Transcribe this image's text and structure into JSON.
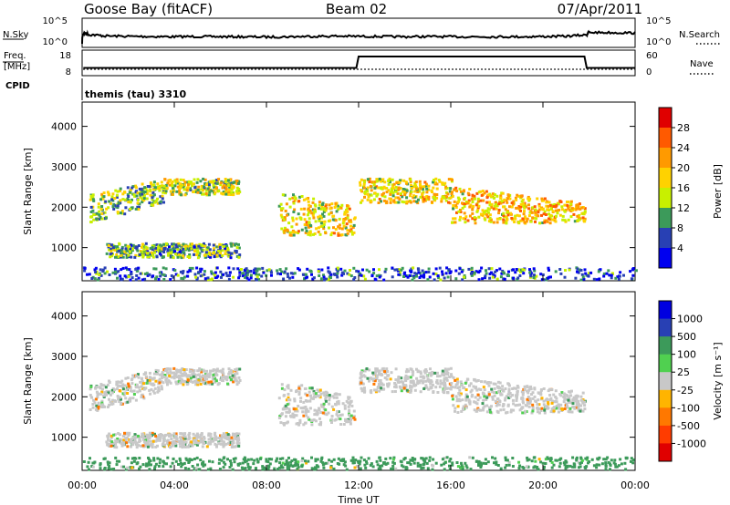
{
  "header": {
    "station": "Goose Bay (fitACF)",
    "beam": "Beam 02",
    "date": "07/Apr/2011"
  },
  "noise_panel": {
    "left_label": "N.Sky",
    "left_ticks": [
      "10^5",
      "10^0"
    ],
    "right_ticks": [
      "10^5",
      "10^0"
    ],
    "right_label": "N.Search"
  },
  "freq_panel": {
    "left_label_line1": "Freq.",
    "left_label_line2": "[MHz]",
    "left_ticks": [
      "18",
      "8"
    ],
    "right_ticks": [
      "60",
      "0"
    ],
    "right_label": "Nave",
    "cpid_label": "CPID",
    "program": "themis (tau) 3310"
  },
  "x_axis": {
    "label": "Time UT",
    "ticks": [
      "00:00",
      "04:00",
      "08:00",
      "12:00",
      "16:00",
      "20:00",
      "00:00"
    ]
  },
  "power_colorbar": {
    "label": "Power [dB]",
    "ticks": [
      "28",
      "24",
      "20",
      "16",
      "12",
      "8",
      "4"
    ],
    "colors": [
      "#e00000",
      "#ff5a00",
      "#ff9a00",
      "#ffd200",
      "#c8f000",
      "#3c9a5a",
      "#2840b4",
      "#0000f0"
    ]
  },
  "velocity_colorbar": {
    "label": "Velocity [m s⁻¹]",
    "ticks": [
      "1000",
      "500",
      "100",
      "25",
      "-25",
      "-100",
      "-500",
      "-1000"
    ],
    "colors": [
      "#0000e0",
      "#2840b4",
      "#3c9a5a",
      "#50d050",
      "#c8c8c8",
      "#ffb400",
      "#ff7800",
      "#ff3c00",
      "#e00000"
    ]
  },
  "chart_data": [
    {
      "type": "line",
      "title": "Goose Bay (fitACF)  Beam 02  07/Apr/2011",
      "xlabel": "Time UT",
      "xlim": [
        0,
        24
      ],
      "series": [
        {
          "name": "N.Sky",
          "scale": "log",
          "x": [
            0,
            0.1,
            0.3,
            1,
            2,
            3,
            4,
            5,
            6,
            7,
            8,
            9,
            10,
            11,
            12,
            13,
            14,
            15,
            16,
            17,
            18,
            19,
            20,
            21,
            21.9,
            22,
            23,
            24
          ],
          "values": [
            1,
            300,
            120,
            60,
            50,
            45,
            40,
            45,
            40,
            40,
            35,
            40,
            50,
            55,
            50,
            45,
            40,
            45,
            40,
            40,
            40,
            40,
            45,
            50,
            100,
            400,
            350,
            300
          ]
        },
        {
          "name": "Freq. [MHz]",
          "x": [
            0.05,
            11.9,
            12.0,
            21.8,
            21.9,
            24
          ],
          "values": [
            11,
            11,
            16,
            16,
            11,
            11
          ]
        }
      ]
    },
    {
      "type": "heatmap",
      "ylabel": "Slant Range [km]",
      "xlabel": "Time UT",
      "yticks": [
        1000,
        2000,
        3000,
        4000
      ],
      "ylim": [
        180,
        4600
      ],
      "colorbar": "Power [dB]",
      "clim": [
        0,
        30
      ],
      "bands": [
        {
          "t_start": 0.3,
          "t_end": 3.5,
          "r_low": 1600,
          "r_high": 2300,
          "trend": "rising",
          "power_dB": 12
        },
        {
          "t_start": 3.5,
          "t_end": 6.8,
          "r_low": 2300,
          "r_high": 2700,
          "trend": "flat",
          "power_dB": 14
        },
        {
          "t_start": 1.0,
          "t_end": 6.8,
          "r_low": 750,
          "r_high": 1100,
          "trend": "flat",
          "power_dB": 10
        },
        {
          "t_start": 8.5,
          "t_end": 11.8,
          "r_low": 1300,
          "r_high": 2400,
          "trend": "falling",
          "power_dB": 16
        },
        {
          "t_start": 12.0,
          "t_end": 16.0,
          "r_low": 2100,
          "r_high": 2700,
          "trend": "flat",
          "power_dB": 16
        },
        {
          "t_start": 16.0,
          "t_end": 21.8,
          "r_low": 1600,
          "r_high": 2500,
          "trend": "falling",
          "power_dB": 18
        },
        {
          "t_start": 0.0,
          "t_end": 24.0,
          "r_low": 200,
          "r_high": 500,
          "trend": "flat",
          "power_dB": 6
        }
      ]
    },
    {
      "type": "heatmap",
      "ylabel": "Slant Range [km]",
      "xlabel": "Time UT",
      "yticks": [
        1000,
        2000,
        3000,
        4000
      ],
      "ylim": [
        180,
        4600
      ],
      "colorbar": "Velocity [m s⁻¹]",
      "clim": [
        -1000,
        1000
      ],
      "bands": [
        {
          "t_start": 0.3,
          "t_end": 3.5,
          "r_low": 1600,
          "r_high": 2300,
          "trend": "rising",
          "velocity": 0
        },
        {
          "t_start": 3.5,
          "t_end": 6.8,
          "r_low": 2300,
          "r_high": 2700,
          "trend": "flat",
          "velocity": 0
        },
        {
          "t_start": 1.0,
          "t_end": 6.8,
          "r_low": 750,
          "r_high": 1100,
          "trend": "flat",
          "velocity": 0
        },
        {
          "t_start": 8.5,
          "t_end": 11.8,
          "r_low": 1300,
          "r_high": 2400,
          "trend": "falling",
          "velocity": 0
        },
        {
          "t_start": 12.0,
          "t_end": 16.0,
          "r_low": 2100,
          "r_high": 2700,
          "trend": "flat",
          "velocity": 0
        },
        {
          "t_start": 16.0,
          "t_end": 21.8,
          "r_low": 1600,
          "r_high": 2500,
          "trend": "falling",
          "velocity": 0
        },
        {
          "t_start": 0.0,
          "t_end": 24.0,
          "r_low": 200,
          "r_high": 500,
          "trend": "flat",
          "velocity": 150
        }
      ]
    }
  ]
}
